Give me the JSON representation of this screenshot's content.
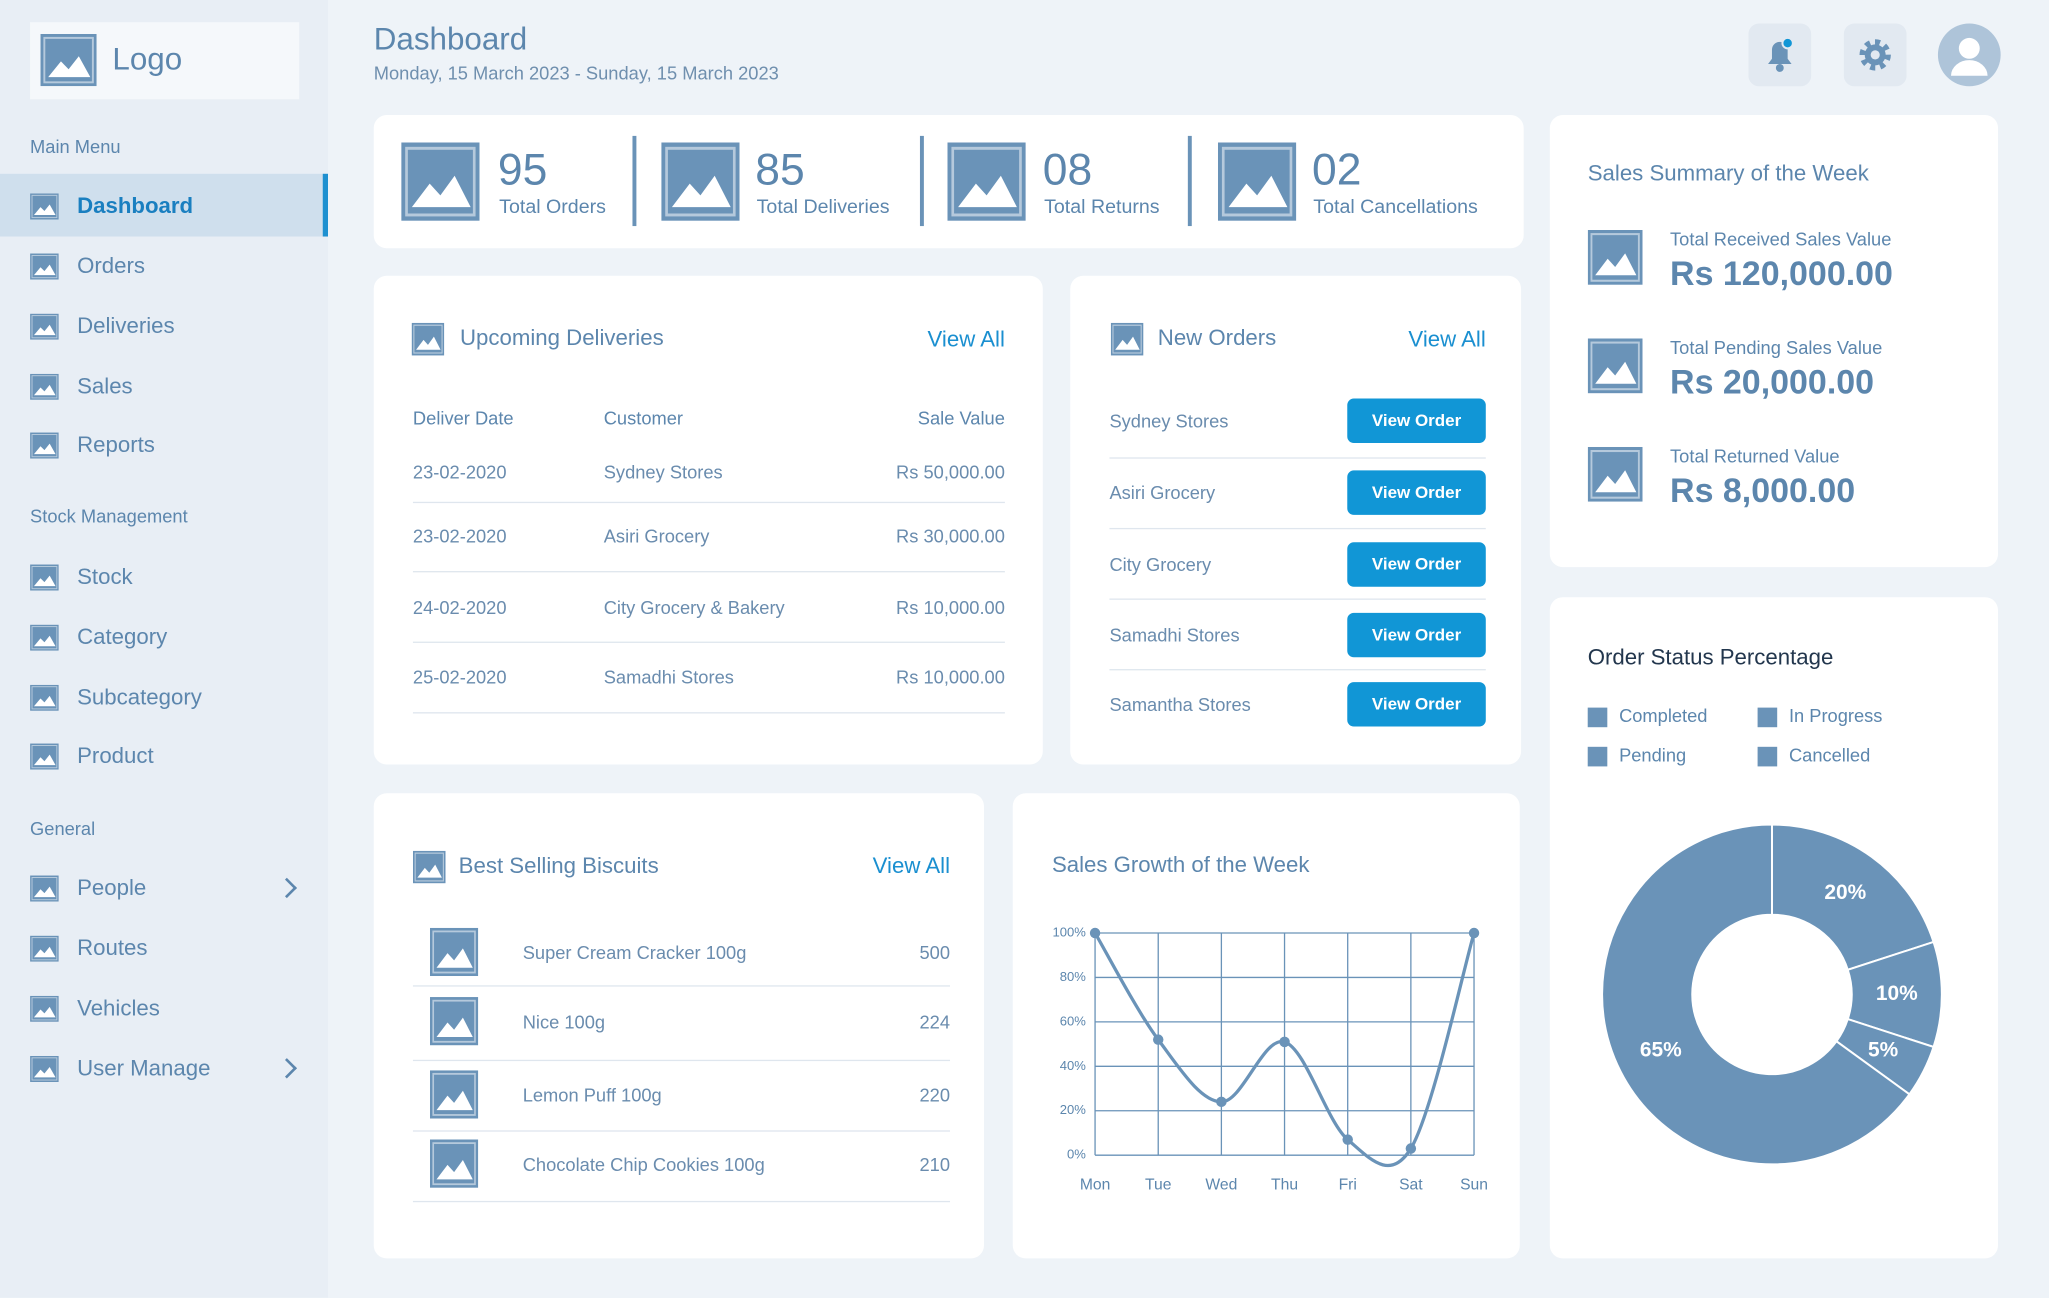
{
  "logo": "Logo",
  "header": {
    "title": "Dashboard",
    "date_range": "Monday, 15 March 2023 - Sunday, 15 March 2023"
  },
  "sidebar": {
    "sections": [
      {
        "title": "Main Menu",
        "items": [
          "Dashboard",
          "Orders",
          "Deliveries",
          "Sales",
          "Reports"
        ]
      },
      {
        "title": "Stock Management",
        "items": [
          "Stock",
          "Category",
          "Subcategory",
          "Product"
        ]
      },
      {
        "title": "General",
        "items": [
          "People",
          "Routes",
          "Vehicles",
          "User Manage"
        ]
      }
    ]
  },
  "stats": [
    {
      "value": "95",
      "label": "Total Orders"
    },
    {
      "value": "85",
      "label": "Total Deliveries"
    },
    {
      "value": "08",
      "label": "Total Returns"
    },
    {
      "value": "02",
      "label": "Total Cancellations"
    }
  ],
  "upcoming_deliveries": {
    "title": "Upcoming Deliveries",
    "view_all": "View All",
    "columns": [
      "Deliver Date",
      "Customer",
      "Sale Value"
    ],
    "rows": [
      [
        "23-02-2020",
        "Sydney Stores",
        "Rs 50,000.00"
      ],
      [
        "23-02-2020",
        "Asiri Grocery",
        "Rs 30,000.00"
      ],
      [
        "24-02-2020",
        "City Grocery & Bakery",
        "Rs 10,000.00"
      ],
      [
        "25-02-2020",
        "Samadhi Stores",
        "Rs 10,000.00"
      ]
    ]
  },
  "new_orders": {
    "title": "New Orders",
    "view_all": "View All",
    "rows": [
      {
        "customer": "Sydney Stores",
        "action": "View Order"
      },
      {
        "customer": "Asiri Grocery",
        "action": "View Order"
      },
      {
        "customer": "City Grocery",
        "action": "View Order"
      },
      {
        "customer": "Samadhi Stores",
        "action": "View Order"
      },
      {
        "customer": "Samantha Stores",
        "action": "View Order"
      }
    ]
  },
  "best_selling": {
    "title": "Best Selling Biscuits",
    "view_all": "View All",
    "rows": [
      {
        "name": "Super Cream  Cracker 100g",
        "quantity": "500"
      },
      {
        "name": "Nice 100g",
        "quantity": "224"
      },
      {
        "name": "Lemon Puff 100g",
        "quantity": "220"
      },
      {
        "name": "Chocolate Chip Cookies 100g",
        "quantity": "210"
      }
    ]
  },
  "sales_summary": {
    "title": "Sales Summary of the Week",
    "items": [
      {
        "label": "Total Received Sales Value",
        "value": "Rs 120,000.00"
      },
      {
        "label": "Total Pending Sales Value",
        "value": "Rs 20,000.00"
      },
      {
        "label": "Total Returned Value",
        "value": "Rs 8,000.00"
      }
    ]
  },
  "chart_data": [
    {
      "type": "line",
      "title": "Sales Growth of the Week",
      "categories": [
        "Mon",
        "Tue",
        "Wed",
        "Thu",
        "Fri",
        "Sat",
        "Sun"
      ],
      "series": [
        {
          "name": "Sales Growth",
          "color": "#6a93b8",
          "values": [
            100,
            52,
            24,
            51,
            7,
            3,
            100
          ]
        }
      ],
      "ylim": [
        0,
        100
      ],
      "yticks": [
        {
          "value": 0,
          "label": "0%"
        },
        {
          "value": 20,
          "label": "20%"
        },
        {
          "value": 40,
          "label": "40%"
        },
        {
          "value": 60,
          "label": "60%"
        },
        {
          "value": 80,
          "label": "80%"
        },
        {
          "value": 100,
          "label": "100%"
        }
      ],
      "grid": true
    },
    {
      "type": "donut",
      "title": "Order Status Percentage",
      "categories": [
        "Completed",
        "In Progress",
        "Pending",
        "Cancelled"
      ],
      "values": [
        20,
        10,
        5,
        65
      ],
      "value_labels": [
        "20%",
        "10%",
        "5%",
        "65%"
      ],
      "color": "#6a93b8"
    }
  ]
}
